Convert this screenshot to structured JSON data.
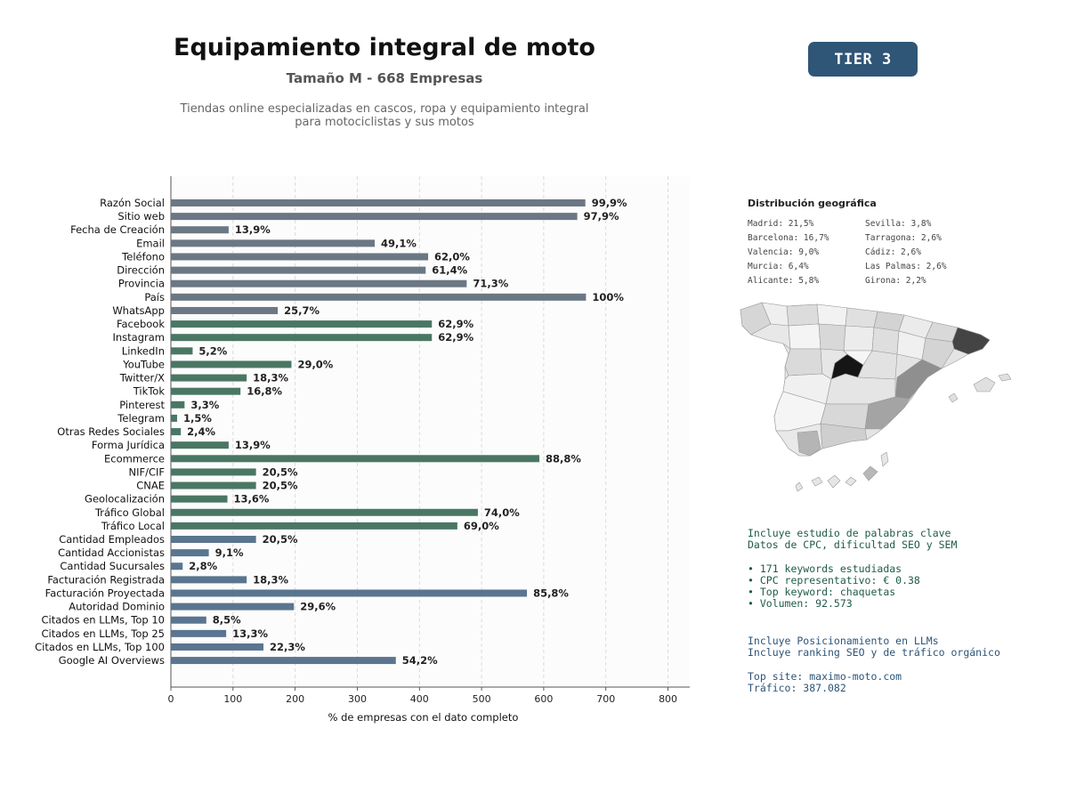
{
  "header": {
    "title": "Equipamiento integral de moto",
    "subtitle": "Tamaño M - 668 Empresas",
    "description_lines": [
      "Tiendas online especializadas en cascos, ropa y equipamiento integral",
      "para motociclistas y sus motos"
    ],
    "tier_badge": "TIER 3"
  },
  "chart_data": {
    "type": "bar",
    "orientation": "horizontal",
    "xlabel": "% de empresas con el dato completo",
    "xlim": [
      0,
      835
    ],
    "xticks": [
      0,
      100,
      200,
      300,
      400,
      500,
      600,
      700,
      800
    ],
    "grid": "vertical-dashed",
    "colors": {
      "basic": "#6b7783",
      "digital": "#4a7764",
      "financial": "#5a7590"
    },
    "categories": [
      "Razón Social",
      "Sitio web",
      "Fecha de Creación",
      "Email",
      "Teléfono",
      "Dirección",
      "Provincia",
      "País",
      "WhatsApp",
      "Facebook",
      "Instagram",
      "LinkedIn",
      "YouTube",
      "Twitter/X",
      "TikTok",
      "Pinterest",
      "Telegram",
      "Otras Redes Sociales",
      "Forma Jurídica",
      "Ecommerce",
      "NIF/CIF",
      "CNAE",
      "Geolocalización",
      "Tráfico Global",
      "Tráfico Local",
      "Cantidad Empleados",
      "Cantidad Accionistas",
      "Cantidad Sucursales",
      "Facturación Registrada",
      "Facturación Proyectada",
      "Autoridad Dominio",
      "Citados en LLMs, Top 10",
      "Citados en LLMs, Top 25",
      "Citados en LLMs, Top 100",
      "Google AI Overviews"
    ],
    "values": [
      667,
      654,
      93,
      328,
      414,
      410,
      476,
      668,
      172,
      420,
      420,
      35,
      194,
      122,
      112,
      22,
      10,
      16,
      93,
      593,
      137,
      137,
      91,
      494,
      461,
      137,
      61,
      19,
      122,
      573,
      198,
      57,
      89,
      149,
      362
    ],
    "labels": [
      "99,9%",
      "97,9%",
      "13,9%",
      "49,1%",
      "62,0%",
      "61,4%",
      "71,3%",
      "100%",
      "25,7%",
      "62,9%",
      "62,9%",
      "5,2%",
      "29,0%",
      "18,3%",
      "16,8%",
      "3,3%",
      "1,5%",
      "2,4%",
      "13,9%",
      "88,8%",
      "20,5%",
      "20,5%",
      "13,6%",
      "74,0%",
      "69,0%",
      "20,5%",
      "9,1%",
      "2,8%",
      "18,3%",
      "85,8%",
      "29,6%",
      "8,5%",
      "13,3%",
      "22,3%",
      "54,2%"
    ],
    "groups": [
      "basic",
      "basic",
      "basic",
      "basic",
      "basic",
      "basic",
      "basic",
      "basic",
      "basic",
      "digital",
      "digital",
      "digital",
      "digital",
      "digital",
      "digital",
      "digital",
      "digital",
      "digital",
      "digital",
      "digital",
      "digital",
      "digital",
      "digital",
      "digital",
      "digital",
      "financial",
      "financial",
      "financial",
      "financial",
      "financial",
      "financial",
      "financial",
      "financial",
      "financial",
      "financial"
    ]
  },
  "geo": {
    "title": "Distribución geográfica",
    "items": [
      "Madrid: 21,5%",
      "Sevilla: 3,8%",
      "Barcelona: 16,7%",
      "Tarragona: 2,6%",
      "Valencia: 9,0%",
      "Cádiz: 2,6%",
      "Murcia: 6,4%",
      "Las Palmas: 2,6%",
      "Alicante: 5,8%",
      "Girona: 2,2%"
    ]
  },
  "seo": {
    "line1": "Incluye estudio de palabras clave",
    "line2": "Datos de CPC, dificultad SEO y SEM",
    "bullets": [
      "• 171 keywords estudiadas",
      "• CPC representativo: € 0.38",
      "• Top keyword: chaquetas",
      "• Volumen: 92.573"
    ]
  },
  "llm": {
    "line1": "Incluye Posicionamiento en LLMs",
    "line2": "Incluye ranking SEO y de tráfico orgánico",
    "top_site": "Top site: maximo-moto.com",
    "traffic": "Tráfico: 387.082"
  }
}
